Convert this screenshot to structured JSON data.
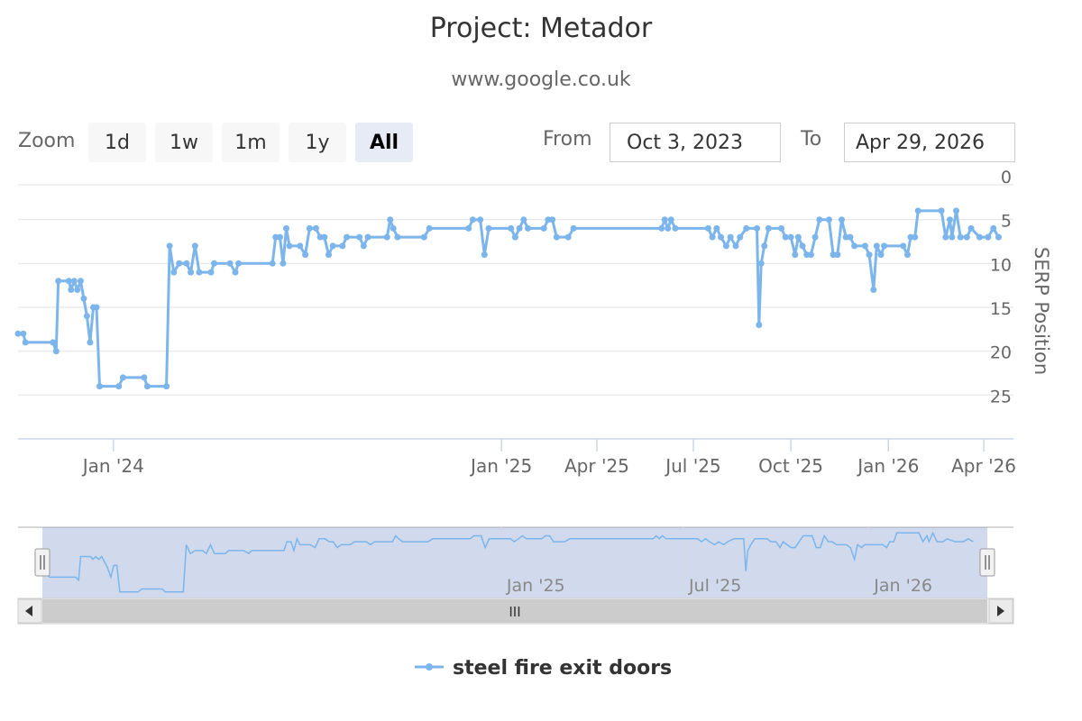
{
  "header": {
    "title": "Project: Metador",
    "subtitle": "www.google.co.uk"
  },
  "range_selector": {
    "zoom_label": "Zoom",
    "buttons": [
      {
        "label": "1d",
        "active": false
      },
      {
        "label": "1w",
        "active": false
      },
      {
        "label": "1m",
        "active": false
      },
      {
        "label": "1y",
        "active": false
      },
      {
        "label": "All",
        "active": true
      }
    ],
    "from_label": "From",
    "from_value": "Oct 3, 2023",
    "to_label": "To",
    "to_value": "Apr 29, 2026"
  },
  "navigator": {
    "tick_labels": [
      "Jan '25",
      "Jul '25",
      "Jan '26"
    ],
    "scrollbar_grip": "III",
    "left_arrow": "◂",
    "right_arrow": "▸"
  },
  "legend": {
    "series_name": "steel fire exit doors"
  },
  "colors": {
    "series": "#7cb5ec",
    "grid": "#e6e6e6",
    "axis": "#ccd6eb",
    "navigator_mask": "rgba(102,133,194,0.3)",
    "scrollbar_track": "#cccccc"
  },
  "chart_data": {
    "type": "line",
    "title": "Project: Metador",
    "subtitle": "www.google.co.uk",
    "ylabel": "SERP Position",
    "xlabel": "",
    "y_reversed": true,
    "ylim": [
      0,
      30
    ],
    "yticks": [
      0,
      5,
      10,
      15,
      20,
      25
    ],
    "xlim": [
      "2023-10-03",
      "2026-04-29"
    ],
    "x_tick_labels": [
      {
        "label": "Jan '24",
        "date": "2024-01-01"
      },
      {
        "label": "Jan '25",
        "date": "2025-01-01"
      },
      {
        "label": "Apr '25",
        "date": "2025-04-01"
      },
      {
        "label": "Jul '25",
        "date": "2025-07-01"
      },
      {
        "label": "Oct '25",
        "date": "2025-10-01"
      },
      {
        "label": "Jan '26",
        "date": "2026-01-01"
      },
      {
        "label": "Apr '26",
        "date": "2026-04-01"
      }
    ],
    "legend_position": "bottom-center",
    "grid": true,
    "series": [
      {
        "name": "steel fire exit doors",
        "points": [
          [
            "2023-10-03",
            18
          ],
          [
            "2023-10-08",
            18
          ],
          [
            "2023-10-10",
            19
          ],
          [
            "2023-11-05",
            19
          ],
          [
            "2023-11-08",
            20
          ],
          [
            "2023-11-10",
            12
          ],
          [
            "2023-11-20",
            12
          ],
          [
            "2023-11-22",
            13
          ],
          [
            "2023-11-25",
            12
          ],
          [
            "2023-11-28",
            13
          ],
          [
            "2023-12-01",
            12
          ],
          [
            "2023-12-04",
            14
          ],
          [
            "2023-12-07",
            16
          ],
          [
            "2023-12-10",
            19
          ],
          [
            "2023-12-13",
            15
          ],
          [
            "2023-12-16",
            15
          ],
          [
            "2023-12-19",
            24
          ],
          [
            "2024-01-06",
            24
          ],
          [
            "2024-01-10",
            23
          ],
          [
            "2024-01-30",
            23
          ],
          [
            "2024-02-02",
            24
          ],
          [
            "2024-02-20",
            24
          ],
          [
            "2024-02-23",
            8
          ],
          [
            "2024-02-27",
            11
          ],
          [
            "2024-03-03",
            10
          ],
          [
            "2024-03-10",
            10
          ],
          [
            "2024-03-14",
            11
          ],
          [
            "2024-03-18",
            8
          ],
          [
            "2024-03-22",
            11
          ],
          [
            "2024-04-02",
            11
          ],
          [
            "2024-04-05",
            10
          ],
          [
            "2024-04-20",
            10
          ],
          [
            "2024-04-25",
            11
          ],
          [
            "2024-04-28",
            10
          ],
          [
            "2024-05-30",
            10
          ],
          [
            "2024-06-02",
            7
          ],
          [
            "2024-06-06",
            7
          ],
          [
            "2024-06-09",
            10
          ],
          [
            "2024-06-12",
            6
          ],
          [
            "2024-06-15",
            8
          ],
          [
            "2024-06-25",
            8
          ],
          [
            "2024-06-30",
            9
          ],
          [
            "2024-07-04",
            6
          ],
          [
            "2024-07-10",
            6
          ],
          [
            "2024-07-14",
            7
          ],
          [
            "2024-07-18",
            7
          ],
          [
            "2024-07-22",
            9
          ],
          [
            "2024-07-26",
            8
          ],
          [
            "2024-08-04",
            8
          ],
          [
            "2024-08-08",
            7
          ],
          [
            "2024-08-20",
            7
          ],
          [
            "2024-08-24",
            8
          ],
          [
            "2024-08-28",
            7
          ],
          [
            "2024-09-15",
            7
          ],
          [
            "2024-09-18",
            5
          ],
          [
            "2024-09-21",
            6
          ],
          [
            "2024-09-25",
            7
          ],
          [
            "2024-10-20",
            7
          ],
          [
            "2024-10-25",
            6
          ],
          [
            "2024-12-01",
            6
          ],
          [
            "2024-12-05",
            5
          ],
          [
            "2024-12-12",
            5
          ],
          [
            "2024-12-16",
            9
          ],
          [
            "2024-12-20",
            6
          ],
          [
            "2025-01-10",
            6
          ],
          [
            "2025-01-14",
            7
          ],
          [
            "2025-01-18",
            6
          ],
          [
            "2025-01-22",
            5
          ],
          [
            "2025-01-26",
            6
          ],
          [
            "2025-02-10",
            6
          ],
          [
            "2025-02-14",
            5
          ],
          [
            "2025-02-18",
            5
          ],
          [
            "2025-02-22",
            7
          ],
          [
            "2025-03-05",
            7
          ],
          [
            "2025-03-10",
            6
          ],
          [
            "2025-06-01",
            6
          ],
          [
            "2025-06-04",
            5
          ],
          [
            "2025-06-07",
            6
          ],
          [
            "2025-06-10",
            5
          ],
          [
            "2025-06-14",
            6
          ],
          [
            "2025-07-15",
            6
          ],
          [
            "2025-07-19",
            7
          ],
          [
            "2025-07-23",
            6
          ],
          [
            "2025-07-27",
            7
          ],
          [
            "2025-08-01",
            8
          ],
          [
            "2025-08-05",
            7
          ],
          [
            "2025-08-10",
            8
          ],
          [
            "2025-08-14",
            7
          ],
          [
            "2025-08-20",
            6
          ],
          [
            "2025-08-30",
            6
          ],
          [
            "2025-09-01",
            17
          ],
          [
            "2025-09-03",
            10
          ],
          [
            "2025-09-06",
            8
          ],
          [
            "2025-09-10",
            6
          ],
          [
            "2025-09-22",
            6
          ],
          [
            "2025-09-26",
            7
          ],
          [
            "2025-10-01",
            7
          ],
          [
            "2025-10-05",
            9
          ],
          [
            "2025-10-08",
            7
          ],
          [
            "2025-10-12",
            8
          ],
          [
            "2025-10-16",
            9
          ],
          [
            "2025-10-20",
            9
          ],
          [
            "2025-10-24",
            7
          ],
          [
            "2025-10-28",
            5
          ],
          [
            "2025-11-06",
            5
          ],
          [
            "2025-11-10",
            9
          ],
          [
            "2025-11-14",
            9
          ],
          [
            "2025-11-18",
            5
          ],
          [
            "2025-11-22",
            7
          ],
          [
            "2025-11-26",
            7
          ],
          [
            "2025-11-30",
            8
          ],
          [
            "2025-12-10",
            8
          ],
          [
            "2025-12-14",
            9
          ],
          [
            "2025-12-18",
            13
          ],
          [
            "2025-12-21",
            8
          ],
          [
            "2025-12-25",
            9
          ],
          [
            "2025-12-28",
            8
          ],
          [
            "2026-01-15",
            8
          ],
          [
            "2026-01-19",
            9
          ],
          [
            "2026-01-22",
            7
          ],
          [
            "2026-01-26",
            7
          ],
          [
            "2026-01-29",
            4
          ],
          [
            "2026-02-20",
            4
          ],
          [
            "2026-02-24",
            7
          ],
          [
            "2026-02-28",
            5
          ],
          [
            "2026-03-02",
            7
          ],
          [
            "2026-03-06",
            4
          ],
          [
            "2026-03-10",
            7
          ],
          [
            "2026-03-16",
            7
          ],
          [
            "2026-03-20",
            6
          ],
          [
            "2026-03-28",
            7
          ],
          [
            "2026-04-05",
            7
          ],
          [
            "2026-04-10",
            6
          ],
          [
            "2026-04-15",
            7
          ]
        ]
      }
    ]
  }
}
